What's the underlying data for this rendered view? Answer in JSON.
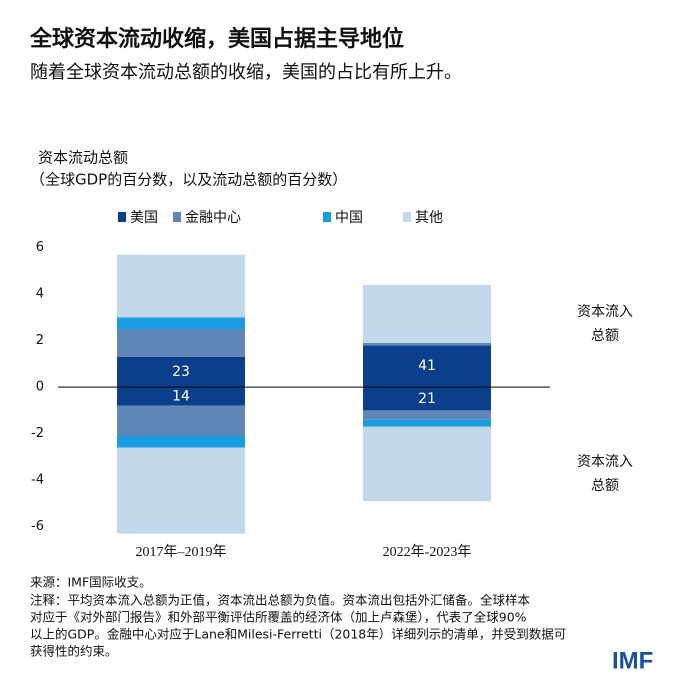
{
  "chart_data": {
    "type": "stacked-bar-flows",
    "title": "全球资本流动收缩，美国占据主导地位",
    "subtitle": "随着全球资本流动总额的收缩，美国的占比有所上升。",
    "y_label": [
      "资本流动总额",
      "（全球GDP的百分数，以及流动总额的百分数）"
    ],
    "categories": [
      "2017年–2019年",
      "2022年-2023年"
    ],
    "series": [
      {
        "name": "美国",
        "color": "#0b3f8c",
        "values": [
          1.3,
          1.8
        ],
        "outflow": [
          -0.8,
          -1.0
        ],
        "inflow_share": [
          23,
          41
        ],
        "outflow_share": [
          14,
          21
        ]
      },
      {
        "name": "金融中心",
        "color": "#5e87b7",
        "values": [
          1.2,
          0.1
        ],
        "outflow": [
          -1.3,
          -0.4
        ]
      },
      {
        "name": "中国",
        "color": "#1a9de0",
        "values": [
          0.5,
          0
        ],
        "outflow": [
          -0.5,
          -0.3
        ]
      },
      {
        "name": "其他",
        "color": "#c3d7ea",
        "values": [
          2.7,
          2.5
        ],
        "outflow": [
          -3.7,
          -3.2
        ]
      }
    ],
    "side_labels": [
      [
        "资本流入",
        "总额"
      ],
      [
        "资本流入",
        "总额"
      ]
    ],
    "ylim": [
      -6.4,
      6.2
    ],
    "yticks": [
      -6,
      -4,
      -2,
      0,
      2,
      4,
      6
    ],
    "grid": false,
    "source": "来源：IMF国际收支。",
    "notes": [
      "注释：平均资本流入总额为正值，资本流出总额为负值。资本流出包括外汇储备。全球样本",
      "对应于《对外部门报告》和外部平衡评估所覆盖的经济体（加上卢森堡），代表了全球90%",
      "以上的GDP。金融中心对应于Lane和Milesi-Ferretti（2018年）详细列示的清单，并受到数据可",
      "获得性的约束。"
    ],
    "logo": "IMF"
  }
}
